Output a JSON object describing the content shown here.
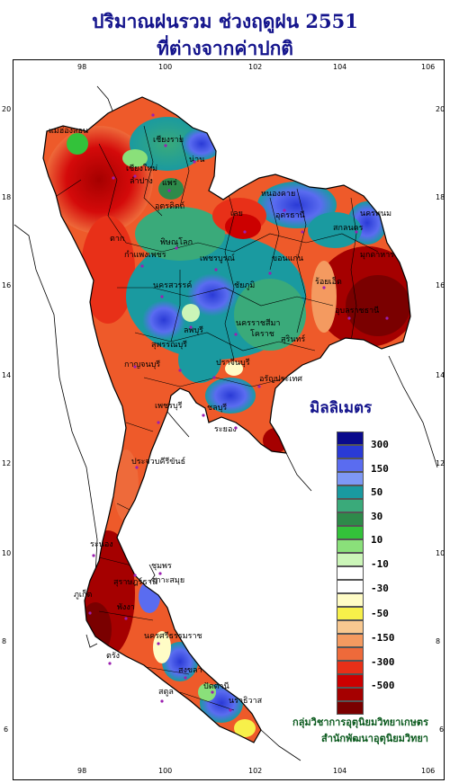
{
  "title_line1": "ปริมาณฝนรวม ช่วงฤดูฝน 2551",
  "title_line2": "ที่ต่างจากค่าปกติ",
  "legend": {
    "title": "มิลลิเมตร",
    "labels": [
      "300",
      "150",
      "50",
      "30",
      "10",
      "-10",
      "-30",
      "-50",
      "-150",
      "-300",
      "-500"
    ],
    "colors": [
      "#0a0a8c",
      "#2a3ad6",
      "#5a6cf0",
      "#7e98f5",
      "#1a9aa0",
      "#3aaa7a",
      "#2e8a4a",
      "#33c23a",
      "#8ae07a",
      "#cbf5b8",
      "#ffffff",
      "#ffffff",
      "#fffcc6",
      "#f7f04a",
      "#f8c890",
      "#f49a60",
      "#ee6a3a",
      "#e83018",
      "#cc0000",
      "#a50000",
      "#7a0000"
    ]
  },
  "axes": {
    "lon_ticks": [
      "98",
      "100",
      "102",
      "104",
      "106"
    ],
    "lat_ticks": [
      "20",
      "18",
      "16",
      "14",
      "12",
      "10",
      "8",
      "6"
    ]
  },
  "provinces": [
    "เชียงใหม่",
    "เชียงราย",
    "ลำปาง",
    "น่าน",
    "แพร่",
    "อุตรดิตถ์",
    "หนองคาย",
    "อุดรธานี",
    "สกลนคร",
    "นครพนม",
    "มุกดาหาร",
    "ขอนแก่น",
    "เลย",
    "ตาก",
    "พิษณุโลก",
    "เพชรบูรณ์",
    "กำแพงเพชร",
    "นครสวรรค์",
    "ชัยภูมิ",
    "ร้อยเอ็ด",
    "อุบลราชธานี",
    "นครราชสีมา",
    "โคราช",
    "สุรินทร์",
    "ลพบุรี",
    "กาญจนบุรี",
    "สุพรรณบุรี",
    "ปราจีนบุรี",
    "อรัญประเทศ",
    "ชลบุรี",
    "ระยอง",
    "เพชรบุรี",
    "ประจวบคีรีขันธ์",
    "ระนอง",
    "ชุมพร",
    "สุราษฎร์ธานี",
    "เกาะสมุย",
    "ภูเก็ต",
    "พังงา",
    "นครศรีธรรมราช",
    "ตรัง",
    "สงขลา",
    "สตูล",
    "ปัตตานี",
    "นราธิวาส",
    "แม่ฮ่องสอน"
  ],
  "credit_line1": "กลุ่มวิชาการอุตุนิยมวิทยาเกษตร",
  "credit_line2": "สำนักพัฒนาอุตุนิยมวิทยา"
}
